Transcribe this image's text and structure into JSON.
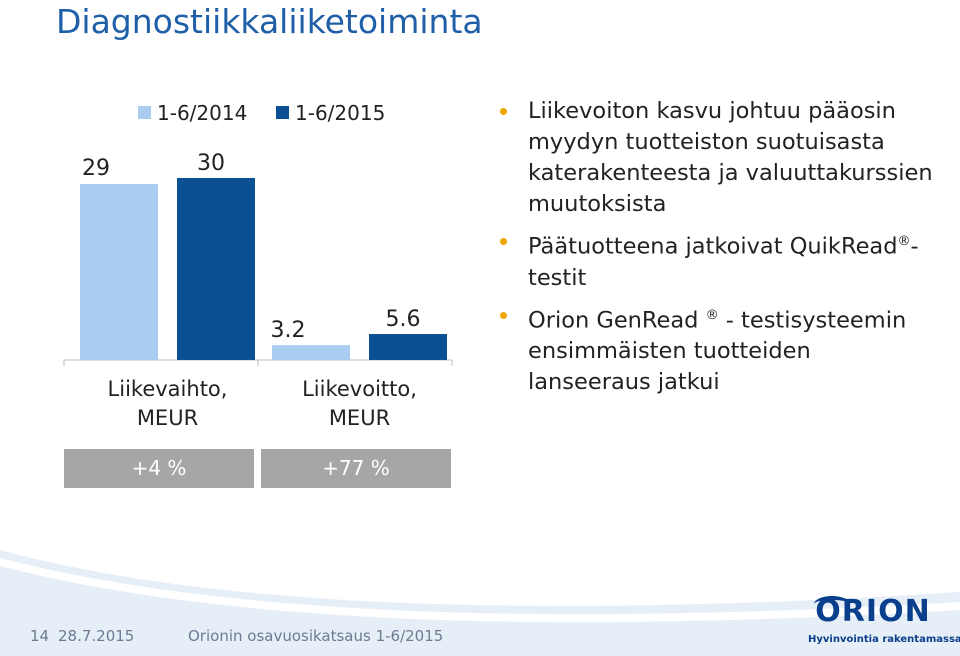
{
  "header": {
    "title": "Diagnostiikkaliiketoiminta"
  },
  "chart_data": {
    "type": "bar",
    "categories": [
      "Liikevaihto,\nMEUR",
      "Liikevoitto,\nMEUR"
    ],
    "category_lines": [
      [
        "Liikevaihto,",
        "MEUR"
      ],
      [
        "Liikevoitto,",
        "MEUR"
      ]
    ],
    "series": [
      {
        "name": "1-6/2014",
        "values": [
          29,
          3.2
        ],
        "labels": [
          "29",
          "3.2"
        ],
        "color": "#a9cdf0"
      },
      {
        "name": "1-6/2015",
        "values": [
          30,
          5.6
        ],
        "labels": [
          "30",
          "5.6"
        ],
        "color": "#0b4f95"
      }
    ],
    "grid": false,
    "legend": "top",
    "changes": [
      "+4 %",
      "+77 %"
    ]
  },
  "bullets": [
    {
      "text": "Liikevoiton kasvu johtuu pääosin myydyn tuotteiston suotuisasta katerakenteesta ja valuuttakurssien muutoksista"
    },
    {
      "text": "Päätuotteena jatkoivat QuikRead",
      "sup": "®",
      "after": "-testit"
    },
    {
      "text": "Orion GenRead",
      "sup": "®",
      "after": " - testisysteemin ensimmäisten tuotteiden lanseeraus jatkui"
    }
  ],
  "footer": {
    "page": "14",
    "date": "28.7.2015",
    "presentation": "Orionin osavuosikatsaus 1-6/2015"
  },
  "logo": {
    "word": "ORION",
    "tagline": "Hyvinvointia rakentamassa"
  },
  "colors": {
    "title": "#1f5fa8",
    "bullet": "#f0a500",
    "change_box": "#a6a6a6",
    "wave": "#0b4f95"
  }
}
